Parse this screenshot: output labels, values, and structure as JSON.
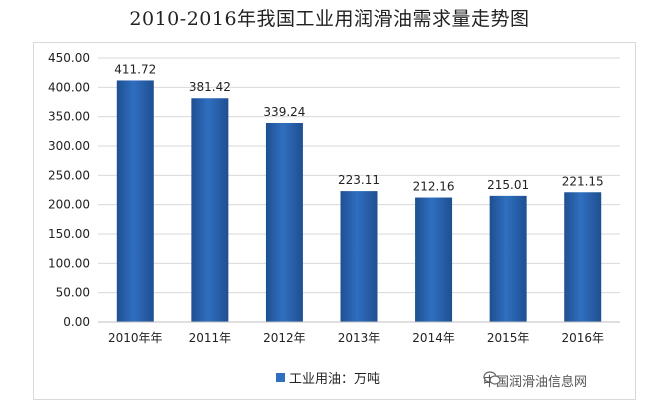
{
  "title": "2010-2016年我国工业用润滑油需求量走势图",
  "legend_label": "工业用油：万吨",
  "watermark": "中国润滑油信息网",
  "colors": {
    "bar": "#2f6fc0",
    "bar_dark": "#1f4f91",
    "grid": "#d9d9d9",
    "axis_text": "#222222"
  },
  "chart_data": {
    "type": "bar",
    "title": "2010-2016年我国工业用润滑油需求量走势图",
    "categories": [
      "2010年年",
      "2011年",
      "2012年",
      "2013年",
      "2014年",
      "2015年",
      "2016年"
    ],
    "series": [
      {
        "name": "工业用油：万吨",
        "values": [
          411.72,
          381.42,
          339.24,
          223.11,
          212.16,
          215.01,
          221.15
        ]
      }
    ],
    "data_labels": [
      "411.72",
      "381.42",
      "339.24",
      "223.11",
      "212.16",
      "215.01",
      "221.15"
    ],
    "ylim": [
      0,
      450
    ],
    "yticks": [
      "0.00",
      "50.00",
      "100.00",
      "150.00",
      "200.00",
      "250.00",
      "300.00",
      "350.00",
      "400.00",
      "450.00"
    ],
    "grid": true,
    "legend": "bottom"
  }
}
